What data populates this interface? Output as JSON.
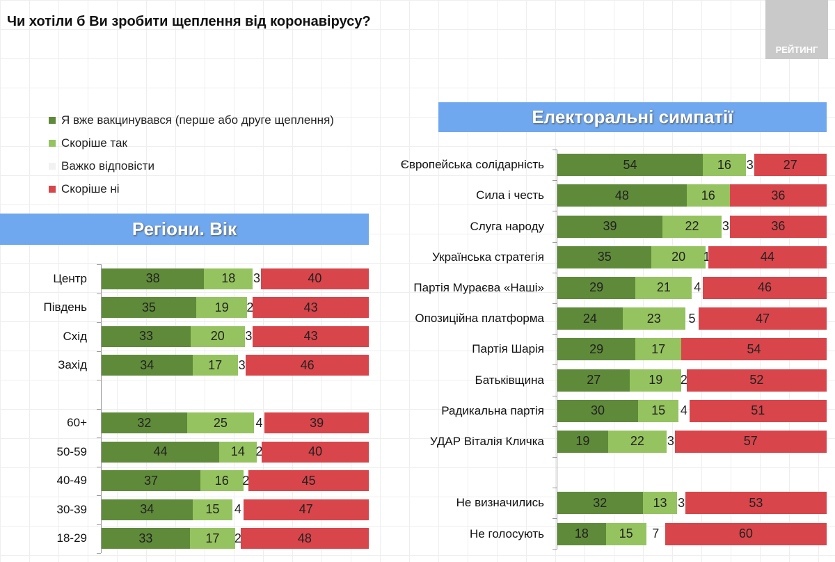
{
  "title": "Чи хотіли б Ви зробити щеплення від коронавірусу?",
  "logo_text": "РЕЙТИНГ",
  "legend": [
    {
      "label": "Я вже вакцинувався (перше або друге щеплення)",
      "color": "#5f8a3a"
    },
    {
      "label": "Скоріше так",
      "color": "#95c35f"
    },
    {
      "label": "Важко відповісти",
      "color": "#f2f2f2"
    },
    {
      "label": "Скоріше ні",
      "color": "#d8454a"
    }
  ],
  "banners": {
    "left": "Регіони. Вік",
    "right": "Електоральні симпатії"
  },
  "chart_data": [
    {
      "type": "bar",
      "stacked": true,
      "orientation": "horizontal",
      "title": "Регіони. Вік",
      "series_names": [
        "Я вже вакцинувався (перше або друге щеплення)",
        "Скоріше так",
        "Важко відповісти",
        "Скоріше ні"
      ],
      "rows": [
        {
          "label": "Центр",
          "values": [
            38,
            18,
            3,
            40
          ]
        },
        {
          "label": "Південь",
          "values": [
            35,
            19,
            2,
            43
          ]
        },
        {
          "label": "Схід",
          "values": [
            33,
            20,
            3,
            43
          ]
        },
        {
          "label": "Захід",
          "values": [
            34,
            17,
            3,
            46
          ]
        },
        {
          "label": "",
          "values": null
        },
        {
          "label": "60+",
          "values": [
            32,
            25,
            4,
            39
          ]
        },
        {
          "label": "50-59",
          "values": [
            44,
            14,
            2,
            40
          ]
        },
        {
          "label": "40-49",
          "values": [
            37,
            16,
            2,
            45
          ]
        },
        {
          "label": "30-39",
          "values": [
            34,
            15,
            4,
            47
          ]
        },
        {
          "label": "18-29",
          "values": [
            33,
            17,
            2,
            48
          ]
        }
      ]
    },
    {
      "type": "bar",
      "stacked": true,
      "orientation": "horizontal",
      "title": "Електоральні симпатії",
      "series_names": [
        "Я вже вакцинувався (перше або друге щеплення)",
        "Скоріше так",
        "Важко відповісти",
        "Скоріше ні"
      ],
      "rows": [
        {
          "label": "Європейська солідарність",
          "values": [
            54,
            16,
            3,
            27
          ]
        },
        {
          "label": "Сила і честь",
          "values": [
            48,
            16,
            0,
            36
          ]
        },
        {
          "label": "Слуга народу",
          "values": [
            39,
            22,
            3,
            36
          ]
        },
        {
          "label": "Українська стратегія",
          "values": [
            35,
            20,
            1,
            44
          ]
        },
        {
          "label": "Партія Мураєва «Наші»",
          "values": [
            29,
            21,
            4,
            46
          ]
        },
        {
          "label": "Опозиційна платформа",
          "values": [
            24,
            23,
            5,
            47
          ]
        },
        {
          "label": "Партія Шарія",
          "values": [
            29,
            17,
            0,
            54
          ]
        },
        {
          "label": "Батьківщина",
          "values": [
            27,
            19,
            2,
            52
          ]
        },
        {
          "label": "Радикальна партія",
          "values": [
            30,
            15,
            4,
            51
          ]
        },
        {
          "label": "УДАР Віталія Кличка",
          "values": [
            19,
            22,
            3,
            57
          ]
        },
        {
          "label": "",
          "values": null
        },
        {
          "label": "Не визначились",
          "values": [
            32,
            13,
            3,
            53
          ]
        },
        {
          "label": "Не голосують",
          "values": [
            18,
            15,
            7,
            60
          ]
        }
      ]
    }
  ]
}
